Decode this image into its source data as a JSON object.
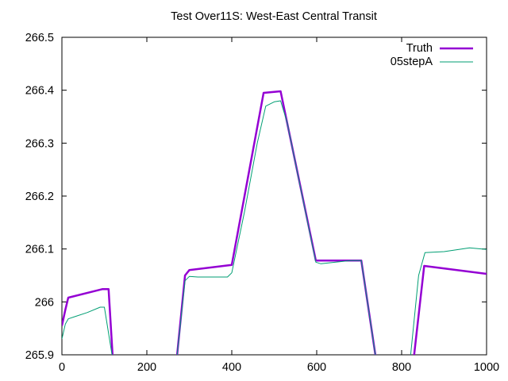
{
  "chart_data": {
    "type": "line",
    "title": "Test Over11S: West-East Central Transit",
    "xlabel": "",
    "ylabel": "",
    "xlim": [
      0,
      1000
    ],
    "ylim": [
      265.9,
      266.5
    ],
    "x_ticks": [
      0,
      200,
      400,
      600,
      800,
      1000
    ],
    "x_tick_labels": [
      "0",
      "200",
      "400",
      "600",
      "800",
      "1000"
    ],
    "y_ticks": [
      265.9,
      266.0,
      266.1,
      266.2,
      266.3,
      266.4,
      266.5
    ],
    "y_tick_labels": [
      "265.9",
      "266",
      "266.1",
      "266.2",
      "266.3",
      "266.4",
      "266.5"
    ],
    "grid": false,
    "legend_position": "top-right",
    "series": [
      {
        "name": "Truth",
        "color": "#9400d3",
        "x": [
          0,
          8,
          15,
          95,
          110,
          120,
          270,
          290,
          300,
          400,
          475,
          515,
          598,
          700,
          705,
          740,
          828,
          853,
          1000
        ],
        "y": [
          265.955,
          265.985,
          266.008,
          266.024,
          266.024,
          265.89,
          265.89,
          266.05,
          266.06,
          266.07,
          266.395,
          266.398,
          266.078,
          266.078,
          266.078,
          265.89,
          265.89,
          266.068,
          266.053
        ]
      },
      {
        "name": "05stepA",
        "color": "#009e73",
        "x": [
          0,
          8,
          15,
          30,
          60,
          90,
          100,
          120,
          270,
          290,
          300,
          320,
          390,
          400,
          430,
          460,
          480,
          500,
          515,
          530,
          598,
          610,
          680,
          705,
          740,
          820,
          840,
          855,
          900,
          960,
          1000
        ],
        "y": [
          265.93,
          265.958,
          265.968,
          265.972,
          265.98,
          265.99,
          265.99,
          265.89,
          265.89,
          266.04,
          266.048,
          266.047,
          266.047,
          266.055,
          266.17,
          266.3,
          266.37,
          266.378,
          266.38,
          266.34,
          266.075,
          266.072,
          266.078,
          266.078,
          265.89,
          265.89,
          266.05,
          266.093,
          266.095,
          266.102,
          266.099
        ]
      }
    ]
  }
}
